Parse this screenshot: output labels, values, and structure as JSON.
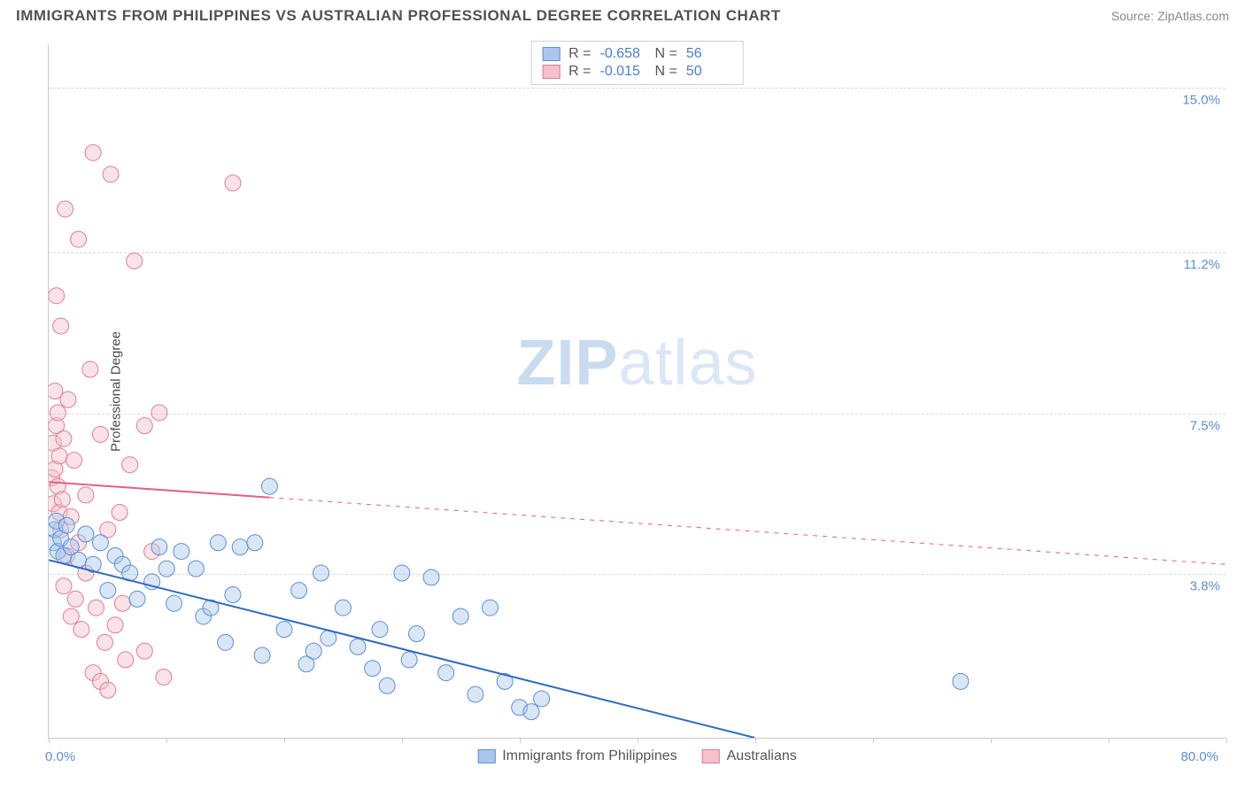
{
  "title": "IMMIGRANTS FROM PHILIPPINES VS AUSTRALIAN PROFESSIONAL DEGREE CORRELATION CHART",
  "source_label": "Source: ZipAtlas.com",
  "watermark": {
    "bold": "ZIP",
    "rest": "atlas"
  },
  "chart": {
    "type": "scatter",
    "background_color": "#ffffff",
    "grid_color": "#d9d9d9",
    "axis_color": "#c9c9c9",
    "ylabel": "Professional Degree",
    "ylabel_fontsize": 15,
    "xlim": [
      0,
      80
    ],
    "ylim": [
      0,
      16
    ],
    "y_ticks": [
      {
        "value": 3.8,
        "label": "3.8%"
      },
      {
        "value": 7.5,
        "label": "7.5%"
      },
      {
        "value": 11.2,
        "label": "11.2%"
      },
      {
        "value": 15.0,
        "label": "15.0%"
      }
    ],
    "x_axis_min_label": "0.0%",
    "x_axis_max_label": "80.0%",
    "x_tick_positions": [
      0,
      8,
      16,
      24,
      32,
      40,
      48,
      56,
      64,
      72,
      80
    ],
    "marker_radius": 9,
    "marker_opacity": 0.45,
    "series": [
      {
        "id": "philippines",
        "label": "Immigrants from Philippines",
        "fill_color": "#a9c7ec",
        "stroke_color": "#5b8fd6",
        "R": "-0.658",
        "N": "56",
        "trend": {
          "x1": 0,
          "y1": 4.1,
          "x2": 48,
          "y2": 0.0,
          "solid_until_x": 48,
          "color": "#2d6cc0",
          "width": 2
        },
        "points": [
          [
            0.3,
            4.5
          ],
          [
            0.4,
            4.8
          ],
          [
            0.5,
            5.0
          ],
          [
            0.6,
            4.3
          ],
          [
            0.8,
            4.6
          ],
          [
            1.0,
            4.2
          ],
          [
            1.2,
            4.9
          ],
          [
            1.5,
            4.4
          ],
          [
            2,
            4.1
          ],
          [
            2.5,
            4.7
          ],
          [
            3,
            4.0
          ],
          [
            3.5,
            4.5
          ],
          [
            4,
            3.4
          ],
          [
            4.5,
            4.2
          ],
          [
            5,
            4.0
          ],
          [
            5.5,
            3.8
          ],
          [
            6,
            3.2
          ],
          [
            7,
            3.6
          ],
          [
            7.5,
            4.4
          ],
          [
            8,
            3.9
          ],
          [
            8.5,
            3.1
          ],
          [
            9,
            4.3
          ],
          [
            10,
            3.9
          ],
          [
            10.5,
            2.8
          ],
          [
            11,
            3.0
          ],
          [
            11.5,
            4.5
          ],
          [
            12,
            2.2
          ],
          [
            12.5,
            3.3
          ],
          [
            13,
            4.4
          ],
          [
            14,
            4.5
          ],
          [
            14.5,
            1.9
          ],
          [
            15,
            5.8
          ],
          [
            16,
            2.5
          ],
          [
            17,
            3.4
          ],
          [
            17.5,
            1.7
          ],
          [
            18,
            2.0
          ],
          [
            18.5,
            3.8
          ],
          [
            19,
            2.3
          ],
          [
            20,
            3.0
          ],
          [
            21,
            2.1
          ],
          [
            22,
            1.6
          ],
          [
            22.5,
            2.5
          ],
          [
            23,
            1.2
          ],
          [
            24,
            3.8
          ],
          [
            24.5,
            1.8
          ],
          [
            25,
            2.4
          ],
          [
            26,
            3.7
          ],
          [
            27,
            1.5
          ],
          [
            28,
            2.8
          ],
          [
            29,
            1.0
          ],
          [
            30,
            3.0
          ],
          [
            31,
            1.3
          ],
          [
            32,
            0.7
          ],
          [
            32.8,
            0.6
          ],
          [
            33.5,
            0.9
          ],
          [
            62,
            1.3
          ]
        ]
      },
      {
        "id": "australians",
        "label": "Australians",
        "fill_color": "#f5c1cd",
        "stroke_color": "#e07b95",
        "R": "-0.015",
        "N": "50",
        "trend": {
          "x1": 0,
          "y1": 5.9,
          "x2": 80,
          "y2": 4.0,
          "solid_until_x": 15,
          "color": "#e15f84",
          "width": 2
        },
        "points": [
          [
            0.2,
            6.0
          ],
          [
            0.3,
            6.8
          ],
          [
            0.3,
            5.4
          ],
          [
            0.4,
            8.0
          ],
          [
            0.4,
            6.2
          ],
          [
            0.5,
            7.2
          ],
          [
            0.5,
            10.2
          ],
          [
            0.6,
            5.8
          ],
          [
            0.6,
            7.5
          ],
          [
            0.7,
            5.2
          ],
          [
            0.7,
            6.5
          ],
          [
            0.8,
            9.5
          ],
          [
            0.8,
            4.8
          ],
          [
            0.9,
            5.5
          ],
          [
            1.0,
            6.9
          ],
          [
            1.0,
            3.5
          ],
          [
            1.1,
            12.2
          ],
          [
            1.2,
            4.2
          ],
          [
            1.3,
            7.8
          ],
          [
            1.5,
            5.1
          ],
          [
            1.5,
            2.8
          ],
          [
            1.7,
            6.4
          ],
          [
            1.8,
            3.2
          ],
          [
            2.0,
            11.5
          ],
          [
            2.0,
            4.5
          ],
          [
            2.2,
            2.5
          ],
          [
            2.5,
            5.6
          ],
          [
            2.5,
            3.8
          ],
          [
            2.8,
            8.5
          ],
          [
            3.0,
            13.5
          ],
          [
            3.0,
            1.5
          ],
          [
            3.2,
            3.0
          ],
          [
            3.5,
            7.0
          ],
          [
            3.5,
            1.3
          ],
          [
            3.8,
            2.2
          ],
          [
            4.0,
            4.8
          ],
          [
            4.0,
            1.1
          ],
          [
            4.2,
            13.0
          ],
          [
            4.5,
            2.6
          ],
          [
            4.8,
            5.2
          ],
          [
            5.0,
            3.1
          ],
          [
            5.2,
            1.8
          ],
          [
            5.5,
            6.3
          ],
          [
            5.8,
            11.0
          ],
          [
            6.5,
            2.0
          ],
          [
            6.5,
            7.2
          ],
          [
            7.0,
            4.3
          ],
          [
            7.5,
            7.5
          ],
          [
            12.5,
            12.8
          ],
          [
            7.8,
            1.4
          ]
        ]
      }
    ],
    "legend_top": {
      "R_label": "R =",
      "N_label": "N ="
    },
    "legend_bottom_labels": [
      "Immigrants from Philippines",
      "Australians"
    ]
  }
}
